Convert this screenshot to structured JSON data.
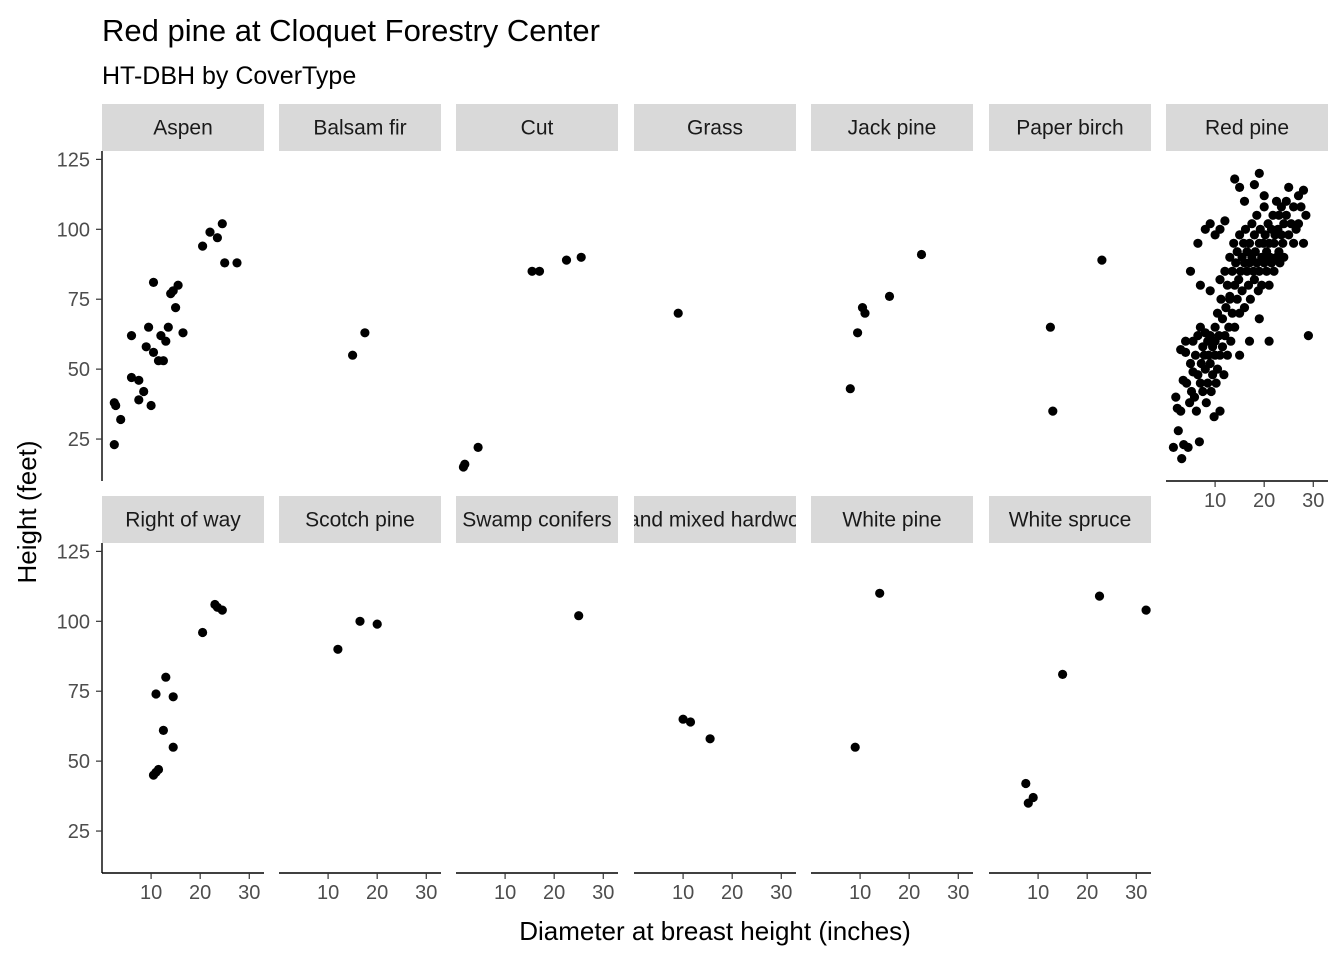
{
  "chart_data": {
    "type": "scatter",
    "title": "Red pine at Cloquet Forestry Center",
    "subtitle": "HT-DBH by CoverType",
    "xlabel": "Diameter at breast height (inches)",
    "ylabel": "Height (feet)",
    "xlim": [
      0,
      33
    ],
    "ylim": [
      10,
      128
    ],
    "x_ticks": [
      10,
      20,
      30
    ],
    "y_ticks": [
      25,
      50,
      75,
      100,
      125
    ],
    "grid": false,
    "point_color": "#000000",
    "strip_color": "#d9d9d9",
    "facets": [
      {
        "name": "Aspen",
        "points": [
          [
            2.5,
            38
          ],
          [
            2.8,
            37
          ],
          [
            2.5,
            23
          ],
          [
            3.8,
            32
          ],
          [
            6,
            62
          ],
          [
            6,
            47
          ],
          [
            7.5,
            46
          ],
          [
            7.5,
            39
          ],
          [
            8.5,
            42
          ],
          [
            9,
            58
          ],
          [
            9.5,
            65
          ],
          [
            10,
            37
          ],
          [
            10.5,
            81
          ],
          [
            10.5,
            56
          ],
          [
            11.5,
            53
          ],
          [
            12,
            62
          ],
          [
            12.5,
            53
          ],
          [
            13,
            60
          ],
          [
            13.5,
            65
          ],
          [
            14,
            77
          ],
          [
            14.5,
            78
          ],
          [
            15,
            72
          ],
          [
            15.5,
            80
          ],
          [
            16.5,
            63
          ],
          [
            20.5,
            94
          ],
          [
            22,
            99
          ],
          [
            23.5,
            97
          ],
          [
            24.5,
            102
          ],
          [
            25,
            88
          ],
          [
            27.5,
            88
          ]
        ]
      },
      {
        "name": "Balsam fir",
        "points": [
          [
            15,
            55
          ],
          [
            17.5,
            63
          ]
        ]
      },
      {
        "name": "Cut",
        "points": [
          [
            1.5,
            15
          ],
          [
            1.8,
            16
          ],
          [
            4.5,
            22
          ],
          [
            15.5,
            85
          ],
          [
            17,
            85
          ],
          [
            22.5,
            89
          ],
          [
            25.5,
            90
          ]
        ]
      },
      {
        "name": "Grass",
        "points": [
          [
            9,
            70
          ]
        ]
      },
      {
        "name": "Jack pine",
        "points": [
          [
            8,
            43
          ],
          [
            9.5,
            63
          ],
          [
            10.5,
            72
          ],
          [
            11,
            70
          ],
          [
            16,
            76
          ],
          [
            22.5,
            91
          ]
        ]
      },
      {
        "name": "Paper birch",
        "points": [
          [
            12.5,
            65
          ],
          [
            13,
            35
          ],
          [
            23,
            89
          ]
        ]
      },
      {
        "name": "Red pine",
        "points": [
          [
            1.5,
            22
          ],
          [
            2,
            40
          ],
          [
            2.3,
            36
          ],
          [
            2.5,
            28
          ],
          [
            3,
            35
          ],
          [
            3.2,
            18
          ],
          [
            3.5,
            46
          ],
          [
            3.6,
            23
          ],
          [
            4,
            56
          ],
          [
            4,
            60
          ],
          [
            4.2,
            45
          ],
          [
            4.5,
            22
          ],
          [
            4.8,
            38
          ],
          [
            5,
            52
          ],
          [
            5.2,
            42
          ],
          [
            5.5,
            49
          ],
          [
            5.5,
            60
          ],
          [
            5.8,
            40
          ],
          [
            6,
            55
          ],
          [
            6.2,
            35
          ],
          [
            6.5,
            62
          ],
          [
            6.5,
            48
          ],
          [
            6.8,
            24
          ],
          [
            7,
            65
          ],
          [
            7,
            45
          ],
          [
            7.2,
            52
          ],
          [
            7.5,
            58
          ],
          [
            7.5,
            42
          ],
          [
            7.8,
            55
          ],
          [
            8,
            63
          ],
          [
            8,
            50
          ],
          [
            8.2,
            38
          ],
          [
            8.5,
            60
          ],
          [
            8.5,
            45
          ],
          [
            8.7,
            55
          ],
          [
            9,
            52
          ],
          [
            9,
            62
          ],
          [
            9.2,
            42
          ],
          [
            9.5,
            58
          ],
          [
            9.5,
            48
          ],
          [
            9.8,
            33
          ],
          [
            10,
            65
          ],
          [
            10,
            55
          ],
          [
            10,
            60
          ],
          [
            10.2,
            45
          ],
          [
            10.5,
            50
          ],
          [
            10.5,
            70
          ],
          [
            10.8,
            62
          ],
          [
            11,
            55
          ],
          [
            11,
            35
          ],
          [
            11.2,
            75
          ],
          [
            11.5,
            58
          ],
          [
            11.5,
            68
          ],
          [
            11.8,
            48
          ],
          [
            12,
            62
          ],
          [
            12,
            85
          ],
          [
            12.2,
            72
          ],
          [
            12.5,
            55
          ],
          [
            12.5,
            80
          ],
          [
            12.8,
            65
          ],
          [
            13,
            90
          ],
          [
            13,
            75
          ],
          [
            13.2,
            60
          ],
          [
            13.5,
            85
          ],
          [
            13.5,
            70
          ],
          [
            13.8,
            95
          ],
          [
            14,
            80
          ],
          [
            14,
            65
          ],
          [
            14.2,
            88
          ],
          [
            14.5,
            75
          ],
          [
            14.5,
            92
          ],
          [
            14.8,
            82
          ],
          [
            15,
            70
          ],
          [
            15,
            98
          ],
          [
            15.2,
            85
          ],
          [
            15.5,
            90
          ],
          [
            15.5,
            78
          ],
          [
            15.8,
            95
          ],
          [
            16,
            88
          ],
          [
            16,
            72
          ],
          [
            16.2,
            100
          ],
          [
            16.5,
            85
          ],
          [
            16.5,
            92
          ],
          [
            16.8,
            80
          ],
          [
            17,
            95
          ],
          [
            17,
            88
          ],
          [
            17.2,
            75
          ],
          [
            17.5,
            102
          ],
          [
            17.5,
            90
          ],
          [
            17.8,
            85
          ],
          [
            18,
            98
          ],
          [
            18,
            82
          ],
          [
            18.2,
            92
          ],
          [
            18.5,
            88
          ],
          [
            18.5,
            105
          ],
          [
            18.8,
            78
          ],
          [
            19,
            95
          ],
          [
            19,
            85
          ],
          [
            19.2,
            100
          ],
          [
            19.5,
            90
          ],
          [
            19.5,
            80
          ],
          [
            19.8,
            95
          ],
          [
            20,
            88
          ],
          [
            20,
            108
          ],
          [
            20.2,
            98
          ],
          [
            20.5,
            92
          ],
          [
            20.5,
            85
          ],
          [
            20.8,
            102
          ],
          [
            21,
            95
          ],
          [
            21,
            80
          ],
          [
            21.2,
            90
          ],
          [
            21.5,
            100
          ],
          [
            21.5,
            88
          ],
          [
            21.8,
            105
          ],
          [
            22,
            95
          ],
          [
            22,
            85
          ],
          [
            22.2,
            98
          ],
          [
            22.5,
            90
          ],
          [
            22.5,
            110
          ],
          [
            22.8,
            100
          ],
          [
            23,
            92
          ],
          [
            23,
            105
          ],
          [
            23.2,
            88
          ],
          [
            23.5,
            98
          ],
          [
            23.5,
            108
          ],
          [
            23.8,
            95
          ],
          [
            24,
            102
          ],
          [
            24,
            90
          ],
          [
            24.5,
            105
          ],
          [
            24.5,
            110
          ],
          [
            25,
            98
          ],
          [
            25,
            115
          ],
          [
            25.5,
            102
          ],
          [
            26,
            108
          ],
          [
            26,
            95
          ],
          [
            26.5,
            100
          ],
          [
            27,
            112
          ],
          [
            27,
            102
          ],
          [
            27.5,
            108
          ],
          [
            28,
            114
          ],
          [
            28,
            95
          ],
          [
            28.5,
            105
          ],
          [
            29,
            62
          ],
          [
            6.5,
            95
          ],
          [
            8,
            100
          ],
          [
            9,
            102
          ],
          [
            10,
            98
          ],
          [
            11,
            100
          ],
          [
            12,
            103
          ],
          [
            14,
            118
          ],
          [
            15,
            115
          ],
          [
            16,
            110
          ],
          [
            18,
            116
          ],
          [
            19,
            120
          ],
          [
            20,
            112
          ],
          [
            7,
            80
          ],
          [
            9,
            78
          ],
          [
            11,
            82
          ],
          [
            13,
            76
          ],
          [
            17,
            60
          ],
          [
            19,
            68
          ],
          [
            15,
            55
          ],
          [
            21,
            60
          ],
          [
            5,
            85
          ],
          [
            3,
            57
          ]
        ]
      },
      {
        "name": "Right of way",
        "points": [
          [
            10.5,
            45
          ],
          [
            11,
            46
          ],
          [
            11.5,
            47
          ],
          [
            11,
            74
          ],
          [
            12.5,
            61
          ],
          [
            13,
            80
          ],
          [
            14.5,
            73
          ],
          [
            14.5,
            55
          ],
          [
            20.5,
            96
          ],
          [
            23,
            106
          ],
          [
            23.5,
            105
          ],
          [
            24.5,
            104
          ]
        ]
      },
      {
        "name": "Scotch pine",
        "points": [
          [
            12,
            90
          ],
          [
            16.5,
            100
          ],
          [
            20,
            99
          ]
        ]
      },
      {
        "name": "Swamp conifers",
        "points": [
          [
            25,
            102
          ]
        ]
      },
      {
        "name": "Upland mixed hardwoods",
        "points": [
          [
            10,
            65
          ],
          [
            11.5,
            64
          ],
          [
            15.5,
            58
          ]
        ]
      },
      {
        "name": "White pine",
        "points": [
          [
            9,
            55
          ],
          [
            14,
            110
          ]
        ]
      },
      {
        "name": "White spruce",
        "points": [
          [
            7.5,
            42
          ],
          [
            8,
            35
          ],
          [
            9,
            37
          ],
          [
            15,
            81
          ],
          [
            22.5,
            109
          ],
          [
            32,
            104
          ]
        ]
      }
    ]
  }
}
